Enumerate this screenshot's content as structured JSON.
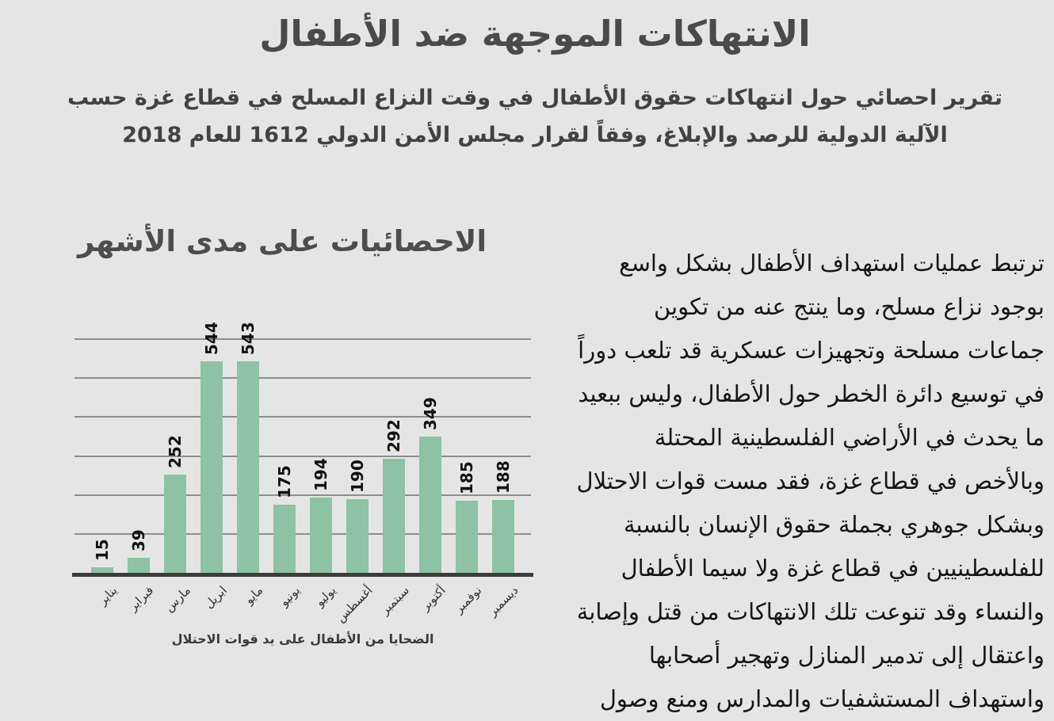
{
  "page": {
    "title": "الانتهاكات الموجهة ضد الأطفال",
    "subtitle_lines": [
      "تقرير احصائي حول انتهاكات حقوق الأطفال في وقت النزاع المسلح في قطاع غزة حسب",
      "الآلية الدولية للرصد والإبلاغ، وفقاً لقرار مجلس الأمن الدولي 1612 للعام 2018"
    ]
  },
  "chart_data": {
    "type": "bar",
    "title": "الاحصائيات على مدى الأشهر",
    "categories": [
      "يناير",
      "فبراير",
      "مارس",
      "ابريل",
      "مايو",
      "يونيو",
      "يوليو",
      "أغسطس",
      "سبتمبر",
      "أكتوبر",
      "نوفمبر",
      "ديسمبر"
    ],
    "values": [
      15,
      39,
      252,
      544,
      543,
      175,
      194,
      190,
      292,
      349,
      185,
      188
    ],
    "xlabel": "الضحايا من الأطفال على يد قوات الاحتلال",
    "ylabel": "",
    "ylim": [
      0,
      600
    ],
    "gridline_step": 100,
    "grid": true,
    "legend": false,
    "y_tick_labels_visible": false,
    "data_label_rotation": -90,
    "category_label_rotation": -45
  },
  "article": {
    "lines": [
      "ترتبط عمليات استهداف الأطفال بشكل واسع",
      "بوجود نزاع مسلح، وما ينتج عنه من تكوين",
      "جماعات مسلحة وتجهيزات عسكرية قد تلعب دوراً",
      "في توسيع دائرة الخطر حول الأطفال، وليس ببعيد",
      "ما يحدث في الأراضي الفلسطينية المحتلة",
      "وبالأخص في قطاع غزة، فقد مست قوات الاحتلال",
      "وبشكل جوهري بجملة حقوق الإنسان بالنسبة",
      "للفلسطينيين في قطاع غزة ولا سيما الأطفال",
      "والنساء وقد تنوعت تلك الانتهاكات من قتل وإصابة",
      "واعتقال إلى تدمير المنازل وتهجير أصحابها",
      "واستهداف المستشفيات والمدارس ومنع وصول"
    ]
  },
  "colors": {
    "background": "#e5e5e5",
    "title": "#4a4a4a",
    "chart_title": "#4d4d4d",
    "bar": "#8dc3a4",
    "gridline": "#8d8d8d",
    "axis_line": "#3c3c3c",
    "body_text": "#151515"
  }
}
